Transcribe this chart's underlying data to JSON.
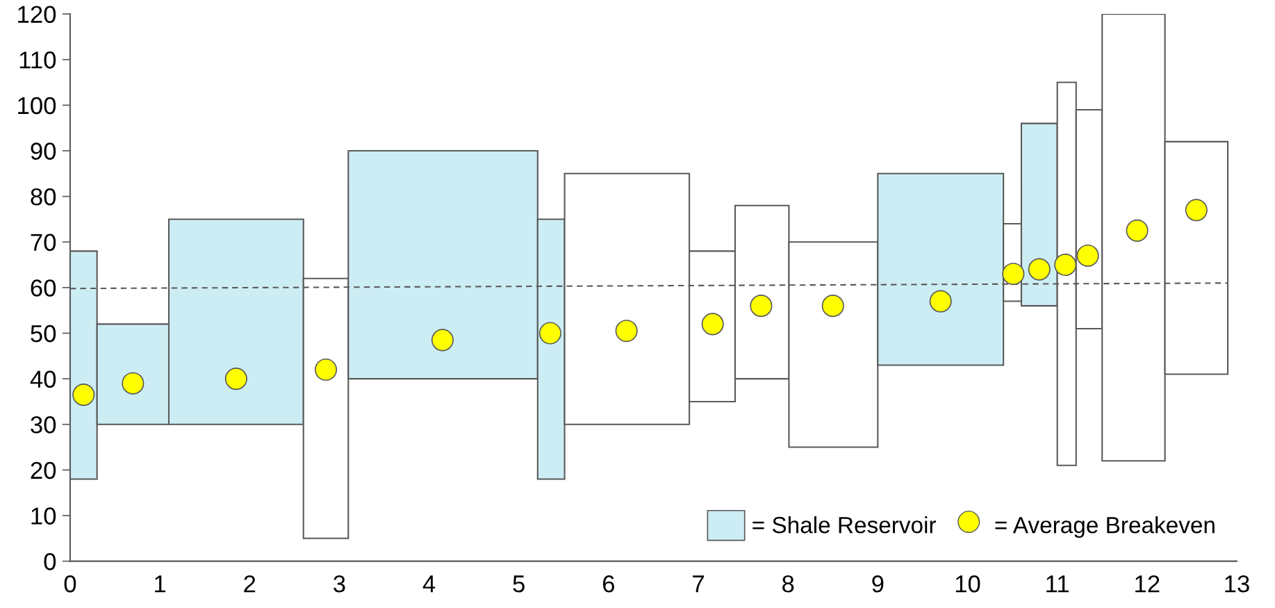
{
  "chart_data": {
    "type": "histogram",
    "xlim": [
      0,
      13
    ],
    "xticks": [
      0,
      1,
      2,
      3,
      4,
      5,
      6,
      7,
      8,
      9,
      10,
      11,
      12,
      13
    ],
    "ylim": [
      0,
      120
    ],
    "yticks": [
      0,
      10,
      20,
      30,
      40,
      50,
      60,
      70,
      80,
      90,
      100,
      110,
      120
    ],
    "grid": false,
    "legend": "bottom right",
    "series": [
      {
        "name": "= Shale Reservoir",
        "color": "#cdedf4",
        "bins": [
          0,
          0.3,
          1.1,
          2.6,
          3.1,
          5.21,
          5.51,
          6.9,
          7.41,
          8.01,
          9.0,
          10.4,
          10.6,
          11.0,
          11.21,
          11.5,
          12.2,
          12.9
        ],
        "base": [
          18,
          30,
          30,
          5,
          40,
          18,
          30,
          35,
          40,
          25,
          43,
          57,
          56,
          21,
          51,
          22,
          41
        ],
        "values": [
          50,
          22,
          45,
          57,
          50,
          57,
          55,
          33,
          38,
          45,
          42,
          17,
          40,
          84,
          48,
          98,
          51
        ],
        "colors": [
          "#cdedf4",
          "#cdedf4",
          "#cdedf4",
          "#ffffff",
          "#cdedf4",
          "#cdedf4",
          "#ffffff",
          "#ffffff",
          "#ffffff",
          "#ffffff",
          "#cdedf4",
          "#ffffff",
          "#cdedf4",
          "#ffffff",
          "#ffffff",
          "#ffffff",
          "#ffffff"
        ]
      },
      {
        "type": "scatter",
        "name": "= Average Breakeven",
        "color": "#ffff00",
        "marker": "circle",
        "x": [
          0.15,
          0.7,
          1.85,
          2.85,
          4.15,
          5.35,
          6.2,
          7.16,
          7.7,
          8.5,
          9.7,
          10.51,
          10.8,
          11.09,
          11.34,
          11.89,
          12.55
        ],
        "values": [
          36.5,
          39,
          40,
          42,
          48.5,
          50,
          50.5,
          52,
          56,
          56,
          57,
          63,
          64,
          65,
          67,
          72.5,
          77
        ]
      },
      {
        "type": "line",
        "color": "#595959",
        "line_style": "dashed",
        "x": [
          0,
          12.9
        ],
        "values": [
          59.8,
          61
        ]
      }
    ]
  }
}
